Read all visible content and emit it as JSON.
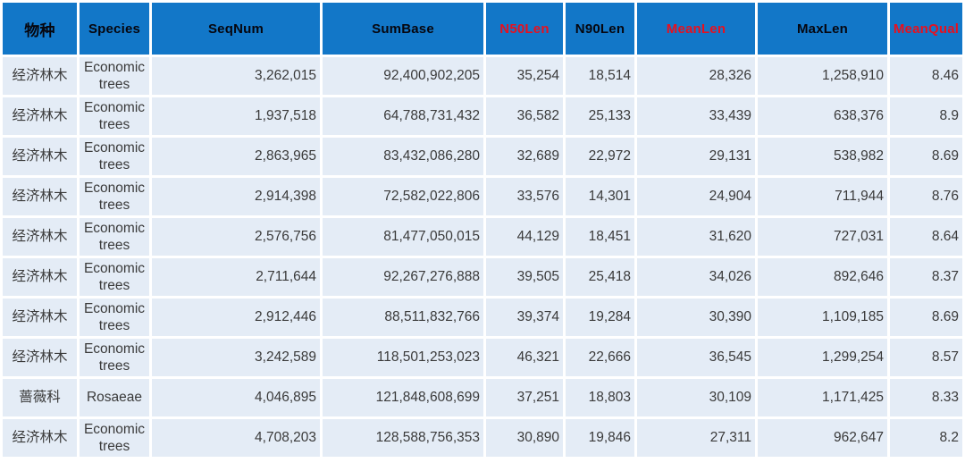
{
  "title": "Sequencing assembly statistics table",
  "colors": {
    "header_bg": "#1277c8",
    "header_text": "#06060e",
    "header_red": "#e8101e",
    "row_bg": "#e4ecf6",
    "row_text": "#3a3a3a",
    "gap": "#ffffff"
  },
  "chart_data": {
    "type": "table",
    "columns": [
      {
        "key": "species_cn",
        "label": "物种",
        "red": false,
        "align": "center",
        "pad": ""
      },
      {
        "key": "species_en",
        "label": "Species",
        "red": false,
        "align": "center",
        "pad": ""
      },
      {
        "key": "seqnum",
        "label": "SeqNum",
        "red": false,
        "align": "right",
        "pad": "pad-lg"
      },
      {
        "key": "sumbase",
        "label": "SumBase",
        "red": false,
        "align": "right",
        "pad": "pad-lg"
      },
      {
        "key": "n50len",
        "label": "N50Len",
        "red": true,
        "align": "right",
        "pad": "pad-md"
      },
      {
        "key": "n90len",
        "label": "N90Len",
        "red": false,
        "align": "right",
        "pad": "pad-md"
      },
      {
        "key": "meanlen",
        "label": "MeanLen",
        "red": true,
        "align": "right",
        "pad": "pad-md"
      },
      {
        "key": "maxlen",
        "label": "MaxLen",
        "red": false,
        "align": "right",
        "pad": "pad-lg"
      },
      {
        "key": "meanqual",
        "label": "MeanQual",
        "red": true,
        "align": "right",
        "pad": "pad-mq"
      }
    ],
    "rows": [
      [
        "经济林木",
        "Economic trees",
        "3,262,015",
        "92,400,902,205",
        "35,254",
        "18,514",
        "28,326",
        "1,258,910",
        "8.46"
      ],
      [
        "经济林木",
        "Economic trees",
        "1,937,518",
        "64,788,731,432",
        "36,582",
        "25,133",
        "33,439",
        "638,376",
        "8.9"
      ],
      [
        "经济林木",
        "Economic trees",
        "2,863,965",
        "83,432,086,280",
        "32,689",
        "22,972",
        "29,131",
        "538,982",
        "8.69"
      ],
      [
        "经济林木",
        "Economic trees",
        "2,914,398",
        "72,582,022,806",
        "33,576",
        "14,301",
        "24,904",
        "711,944",
        "8.76"
      ],
      [
        "经济林木",
        "Economic trees",
        "2,576,756",
        "81,477,050,015",
        "44,129",
        "18,451",
        "31,620",
        "727,031",
        "8.64"
      ],
      [
        "经济林木",
        "Economic trees",
        "2,711,644",
        "92,267,276,888",
        "39,505",
        "25,418",
        "34,026",
        "892,646",
        "8.37"
      ],
      [
        "经济林木",
        "Economic trees",
        "2,912,446",
        "88,511,832,766",
        "39,374",
        "19,284",
        "30,390",
        "1,109,185",
        "8.69"
      ],
      [
        "经济林木",
        "Economic trees",
        "3,242,589",
        "118,501,253,023",
        "46,321",
        "22,666",
        "36,545",
        "1,299,254",
        "8.57"
      ],
      [
        "蔷薇科",
        "Rosaeae",
        "4,046,895",
        "121,848,608,699",
        "37,251",
        "18,803",
        "30,109",
        "1,171,425",
        "8.33"
      ],
      [
        "经济林木",
        "Economic trees",
        "4,708,203",
        "128,588,756,353",
        "30,890",
        "19,846",
        "27,311",
        "962,647",
        "8.2"
      ]
    ]
  }
}
